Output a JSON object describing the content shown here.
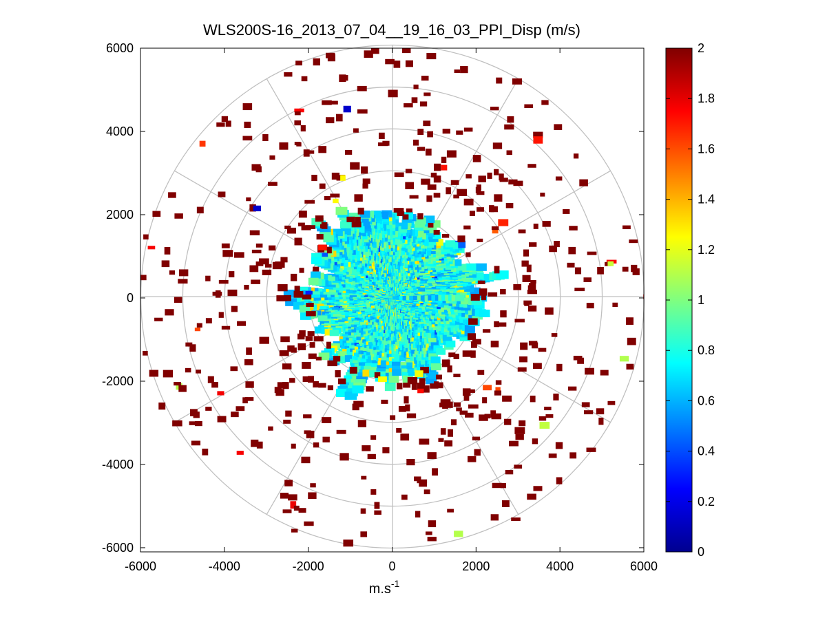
{
  "chart_data": {
    "type": "heatmap",
    "subtype": "polar-ppi-scan",
    "title": "WLS200S-16_2013_07_04__19_16_03_PPI_Disp (m/s)",
    "xlabel_main": "m.s",
    "xlabel_sup": "-1",
    "ylabel": "",
    "xlim": [
      -6000,
      6000
    ],
    "ylim": [
      -6100,
      6000
    ],
    "x_ticks": [
      -6000,
      -4000,
      -2000,
      0,
      2000,
      4000,
      6000
    ],
    "x_tick_labels": [
      "-6000",
      "-4000",
      "-2000",
      "0",
      "2000",
      "4000",
      "6000"
    ],
    "y_ticks": [
      -6000,
      -4000,
      -2000,
      0,
      2000,
      4000,
      6000
    ],
    "y_tick_labels": [
      "-6000",
      "-4000",
      "-2000",
      "0",
      "2000",
      "4000",
      "6000"
    ],
    "polar_grid_radii": [
      1000,
      2000,
      3000,
      4000,
      5000,
      6000
    ],
    "polar_spoke_angles_deg": [
      0,
      30,
      60,
      90,
      120,
      150,
      180,
      210,
      240,
      270,
      300,
      330
    ],
    "dense_region_max_range": 2200,
    "scatter_max_range": 6000,
    "colorbar": {
      "colormap": "jet",
      "range": [
        0,
        2
      ],
      "ticks": [
        0,
        0.2,
        0.4,
        0.6,
        0.8,
        1,
        1.2,
        1.4,
        1.6,
        1.8,
        2
      ],
      "tick_labels": [
        "0",
        "0.2",
        "0.4",
        "0.6",
        "0.8",
        "1",
        "1.2",
        "1.4",
        "1.6",
        "1.8",
        "2"
      ]
    },
    "colors": {
      "grid": "#c0c0c0",
      "axes": "#000000",
      "outlier": "#800000"
    }
  }
}
